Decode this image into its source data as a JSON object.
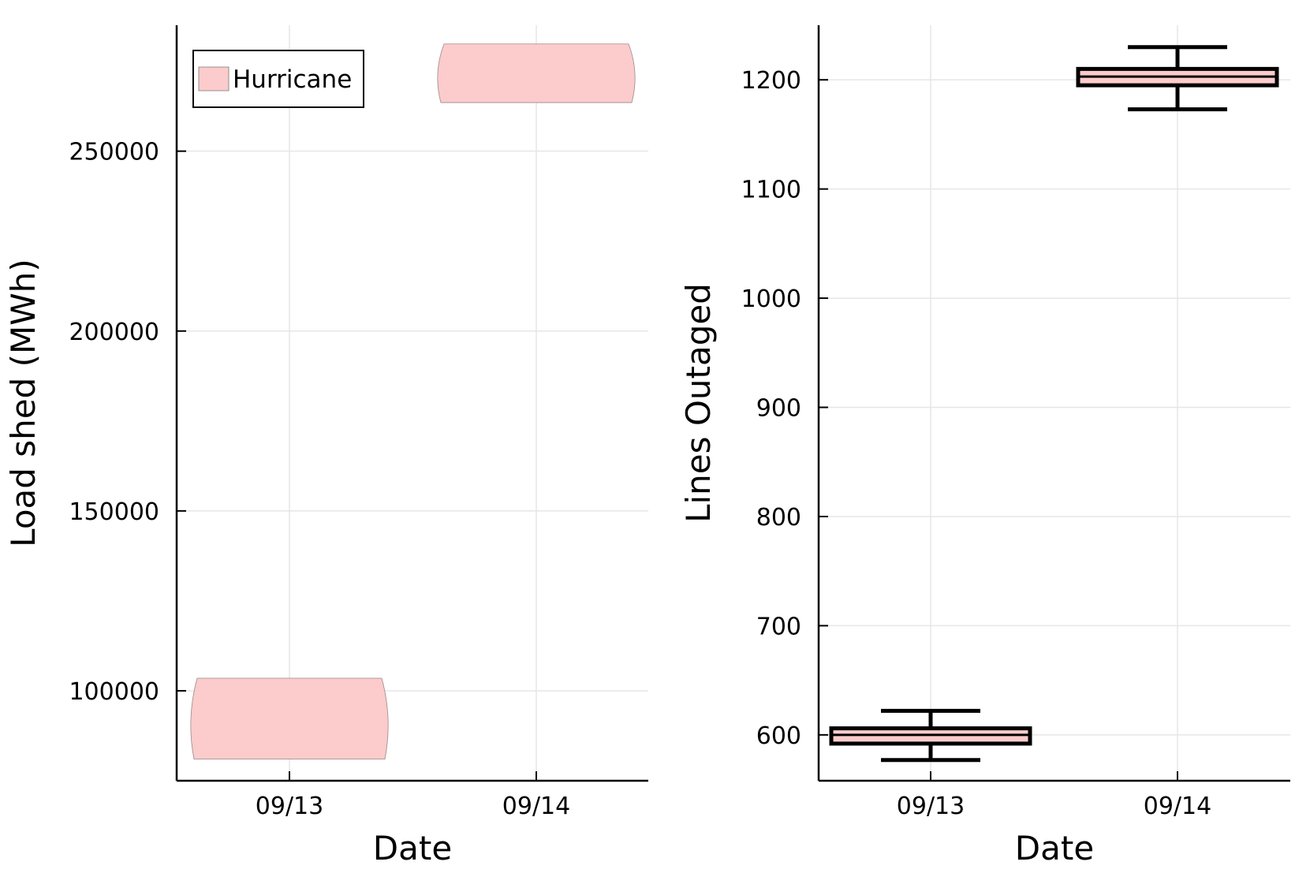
{
  "chart_data": [
    {
      "type": "violin",
      "xlabel": "Date",
      "ylabel": "Load shed (MWh)",
      "categories": [
        "09/13",
        "09/14"
      ],
      "ylim": [
        75000,
        285000
      ],
      "yticks": [
        100000,
        150000,
        200000,
        250000
      ],
      "ytick_labels": [
        "100000",
        "150000",
        "200000",
        "250000"
      ],
      "grid": true,
      "legend": {
        "position": "top-left",
        "entries": [
          "Hurricane"
        ]
      },
      "series": [
        {
          "name": "Hurricane",
          "color": "#fccbcb",
          "values": [
            {
              "category": "09/13",
              "min": 81000,
              "max": 103500
            },
            {
              "category": "09/14",
              "min": 263500,
              "max": 279800
            }
          ]
        }
      ]
    },
    {
      "type": "box",
      "xlabel": "Date",
      "ylabel": "Lines Outaged",
      "categories": [
        "09/13",
        "09/14"
      ],
      "ylim": [
        558,
        1250
      ],
      "yticks": [
        600,
        700,
        800,
        900,
        1000,
        1100,
        1200
      ],
      "ytick_labels": [
        "600",
        "700",
        "800",
        "900",
        "1000",
        "1100",
        "1200"
      ],
      "grid": true,
      "series": [
        {
          "color": "#fccbcb",
          "values": [
            {
              "category": "09/13",
              "whisker_low": 577,
              "q1": 592,
              "median": 600,
              "q3": 606,
              "whisker_high": 622
            },
            {
              "category": "09/14",
              "whisker_low": 1173,
              "q1": 1195,
              "median": 1203,
              "q3": 1210,
              "whisker_high": 1230
            }
          ]
        }
      ]
    }
  ]
}
